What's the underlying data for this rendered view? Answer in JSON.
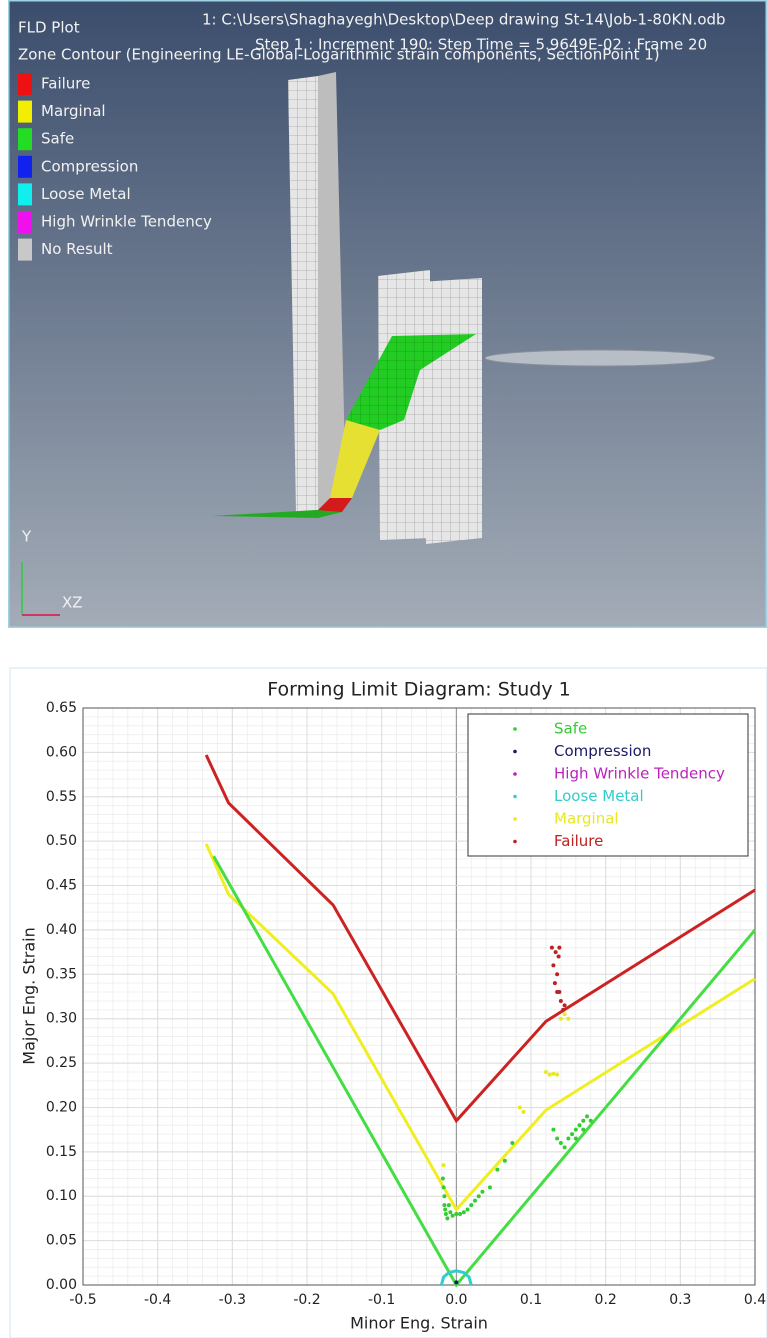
{
  "viewport": {
    "title": "FLD Plot",
    "file": "1: C:\\Users\\Shaghayegh\\Desktop\\Deep drawing St-14\\Job-1-80KN.odb",
    "contour": "Zone Contour (Engineering LE-Global-Logarithmic strain components, SectionPoint 1)",
    "step": "Step 1 : Increment 190: Step Time = 5.9649E-02 : Frame 20",
    "legend": [
      {
        "label": "Failure",
        "color": "#ee1111"
      },
      {
        "label": "Marginal",
        "color": "#f2ee00"
      },
      {
        "label": "Safe",
        "color": "#22dd22"
      },
      {
        "label": "Compression",
        "color": "#1122ee"
      },
      {
        "label": "Loose Metal",
        "color": "#11eeee"
      },
      {
        "label": "High Wrinkle Tendency",
        "color": "#ee11ee"
      },
      {
        "label": "No Result",
        "color": "#c8c8c8"
      }
    ],
    "axis_y": "Y",
    "axis_xz": "XZ"
  },
  "chart_data": {
    "type": "scatter",
    "title": "Forming Limit Diagram: Study 1",
    "x_label": "Minor Eng. Strain",
    "y_label": "Major Eng. Strain",
    "xlim": [
      -0.5,
      0.4
    ],
    "ylim": [
      0,
      0.65
    ],
    "xticks": [
      -0.5,
      -0.4,
      -0.3,
      -0.2,
      -0.1,
      {
        "value": 0,
        "label": "0.0"
      },
      0.1,
      0.2,
      0.3,
      0.4
    ],
    "yticks": [
      {
        "value": 0,
        "label": "0.00"
      },
      0.05,
      {
        "value": 0.1,
        "label": "0.10"
      },
      0.15,
      {
        "value": 0.2,
        "label": "0.20"
      },
      0.25,
      {
        "value": 0.3,
        "label": "0.30"
      },
      0.35,
      {
        "value": 0.4,
        "label": "0.40"
      },
      0.45,
      {
        "value": 0.5,
        "label": "0.50"
      },
      0.55,
      {
        "value": 0.6,
        "label": "0.60"
      },
      0.65
    ],
    "grid": true,
    "legend": "top-right",
    "series": [
      {
        "name": "Safe",
        "color": "#33cc33",
        "x": [
          -0.018,
          -0.017,
          -0.016,
          -0.016,
          -0.015,
          -0.014,
          -0.012,
          -0.01,
          -0.008,
          -0.005,
          0,
          0.005,
          0.01,
          0.015,
          0.02,
          0.025,
          0.03,
          0.035,
          0.045,
          0.055,
          0.065,
          0.075,
          0.13,
          0.135,
          0.14,
          0.145,
          0.15,
          0.155,
          0.16,
          0.165,
          0.17,
          0.175,
          0.18,
          0.16,
          0.17
        ],
        "y": [
          0.12,
          0.11,
          0.1,
          0.09,
          0.085,
          0.08,
          0.075,
          0.09,
          0.082,
          0.078,
          0.08,
          0.08,
          0.082,
          0.085,
          0.09,
          0.095,
          0.1,
          0.105,
          0.11,
          0.13,
          0.14,
          0.16,
          0.175,
          0.165,
          0.16,
          0.155,
          0.165,
          0.17,
          0.175,
          0.18,
          0.185,
          0.19,
          0.185,
          0.165,
          0.175
        ]
      },
      {
        "name": "Compression",
        "color": "#1a1a66",
        "x": [
          0
        ],
        "y": [
          0.003
        ]
      },
      {
        "name": "High Wrinkle Tendency",
        "color": "#bb22bb",
        "x": [],
        "y": []
      },
      {
        "name": "Loose Metal",
        "color": "#33cccc",
        "x": [],
        "y": []
      },
      {
        "name": "Marginal",
        "color": "#e8e820",
        "x": [
          -0.017,
          0.085,
          0.09,
          0.12,
          0.125,
          0.13,
          0.135,
          0.14,
          0.145,
          0.15
        ],
        "y": [
          0.135,
          0.2,
          0.195,
          0.24,
          0.237,
          0.238,
          0.237,
          0.3,
          0.305,
          0.3
        ]
      },
      {
        "name": "Failure",
        "color": "#bb2222",
        "x": [
          0.128,
          0.133,
          0.138,
          0.13,
          0.135,
          0.132,
          0.138,
          0.14,
          0.143,
          0.137,
          0.135,
          0.145
        ],
        "y": [
          0.38,
          0.375,
          0.38,
          0.36,
          0.35,
          0.34,
          0.33,
          0.32,
          0.31,
          0.37,
          0.33,
          0.315
        ]
      }
    ],
    "curves": [
      {
        "color": "#cc2222",
        "x": [
          -0.335,
          -0.305,
          -0.165,
          0,
          0.12,
          0.4
        ],
        "y": [
          0.597,
          0.543,
          0.428,
          0.185,
          0.297,
          0.445
        ]
      },
      {
        "color": "#eeee22",
        "x": [
          -0.335,
          -0.305,
          -0.165,
          0,
          0.12,
          0.4
        ],
        "y": [
          0.497,
          0.44,
          0.328,
          0.085,
          0.197,
          0.345
        ]
      },
      {
        "color": "#44dd44",
        "x": [
          -0.325,
          0,
          0.4
        ],
        "y": [
          0.483,
          0,
          0.4
        ]
      },
      {
        "color": "#33cccc",
        "x": [
          -0.02,
          -0.017,
          -0.01,
          0,
          0.01,
          0.017,
          0.02
        ],
        "y": [
          0,
          0.009,
          0.014,
          0.016,
          0.014,
          0.009,
          0
        ]
      }
    ]
  }
}
